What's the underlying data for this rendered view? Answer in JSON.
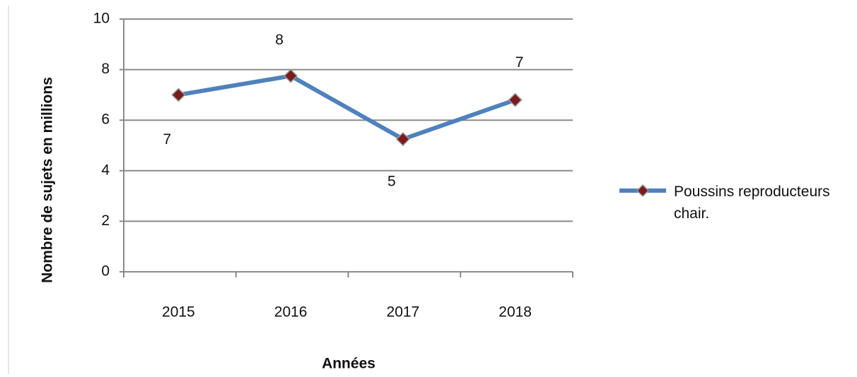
{
  "chart_data": {
    "type": "line",
    "x_label": "Années",
    "y_label": "Nombre de sujets en millions",
    "categories": [
      "2015",
      "2016",
      "2017",
      "2018"
    ],
    "series": [
      {
        "name": "Poussins reproducteurs chair.",
        "color": "#4f81bd",
        "marker_color": "#7b1c1c",
        "values": [
          7.0,
          7.75,
          5.25,
          6.8
        ],
        "value_labels": [
          "7",
          "8",
          "5",
          "7"
        ]
      }
    ],
    "ylim": [
      0,
      10
    ],
    "yticks": [
      0,
      2,
      4,
      6,
      8,
      10
    ],
    "grid": true,
    "legend": "right"
  }
}
